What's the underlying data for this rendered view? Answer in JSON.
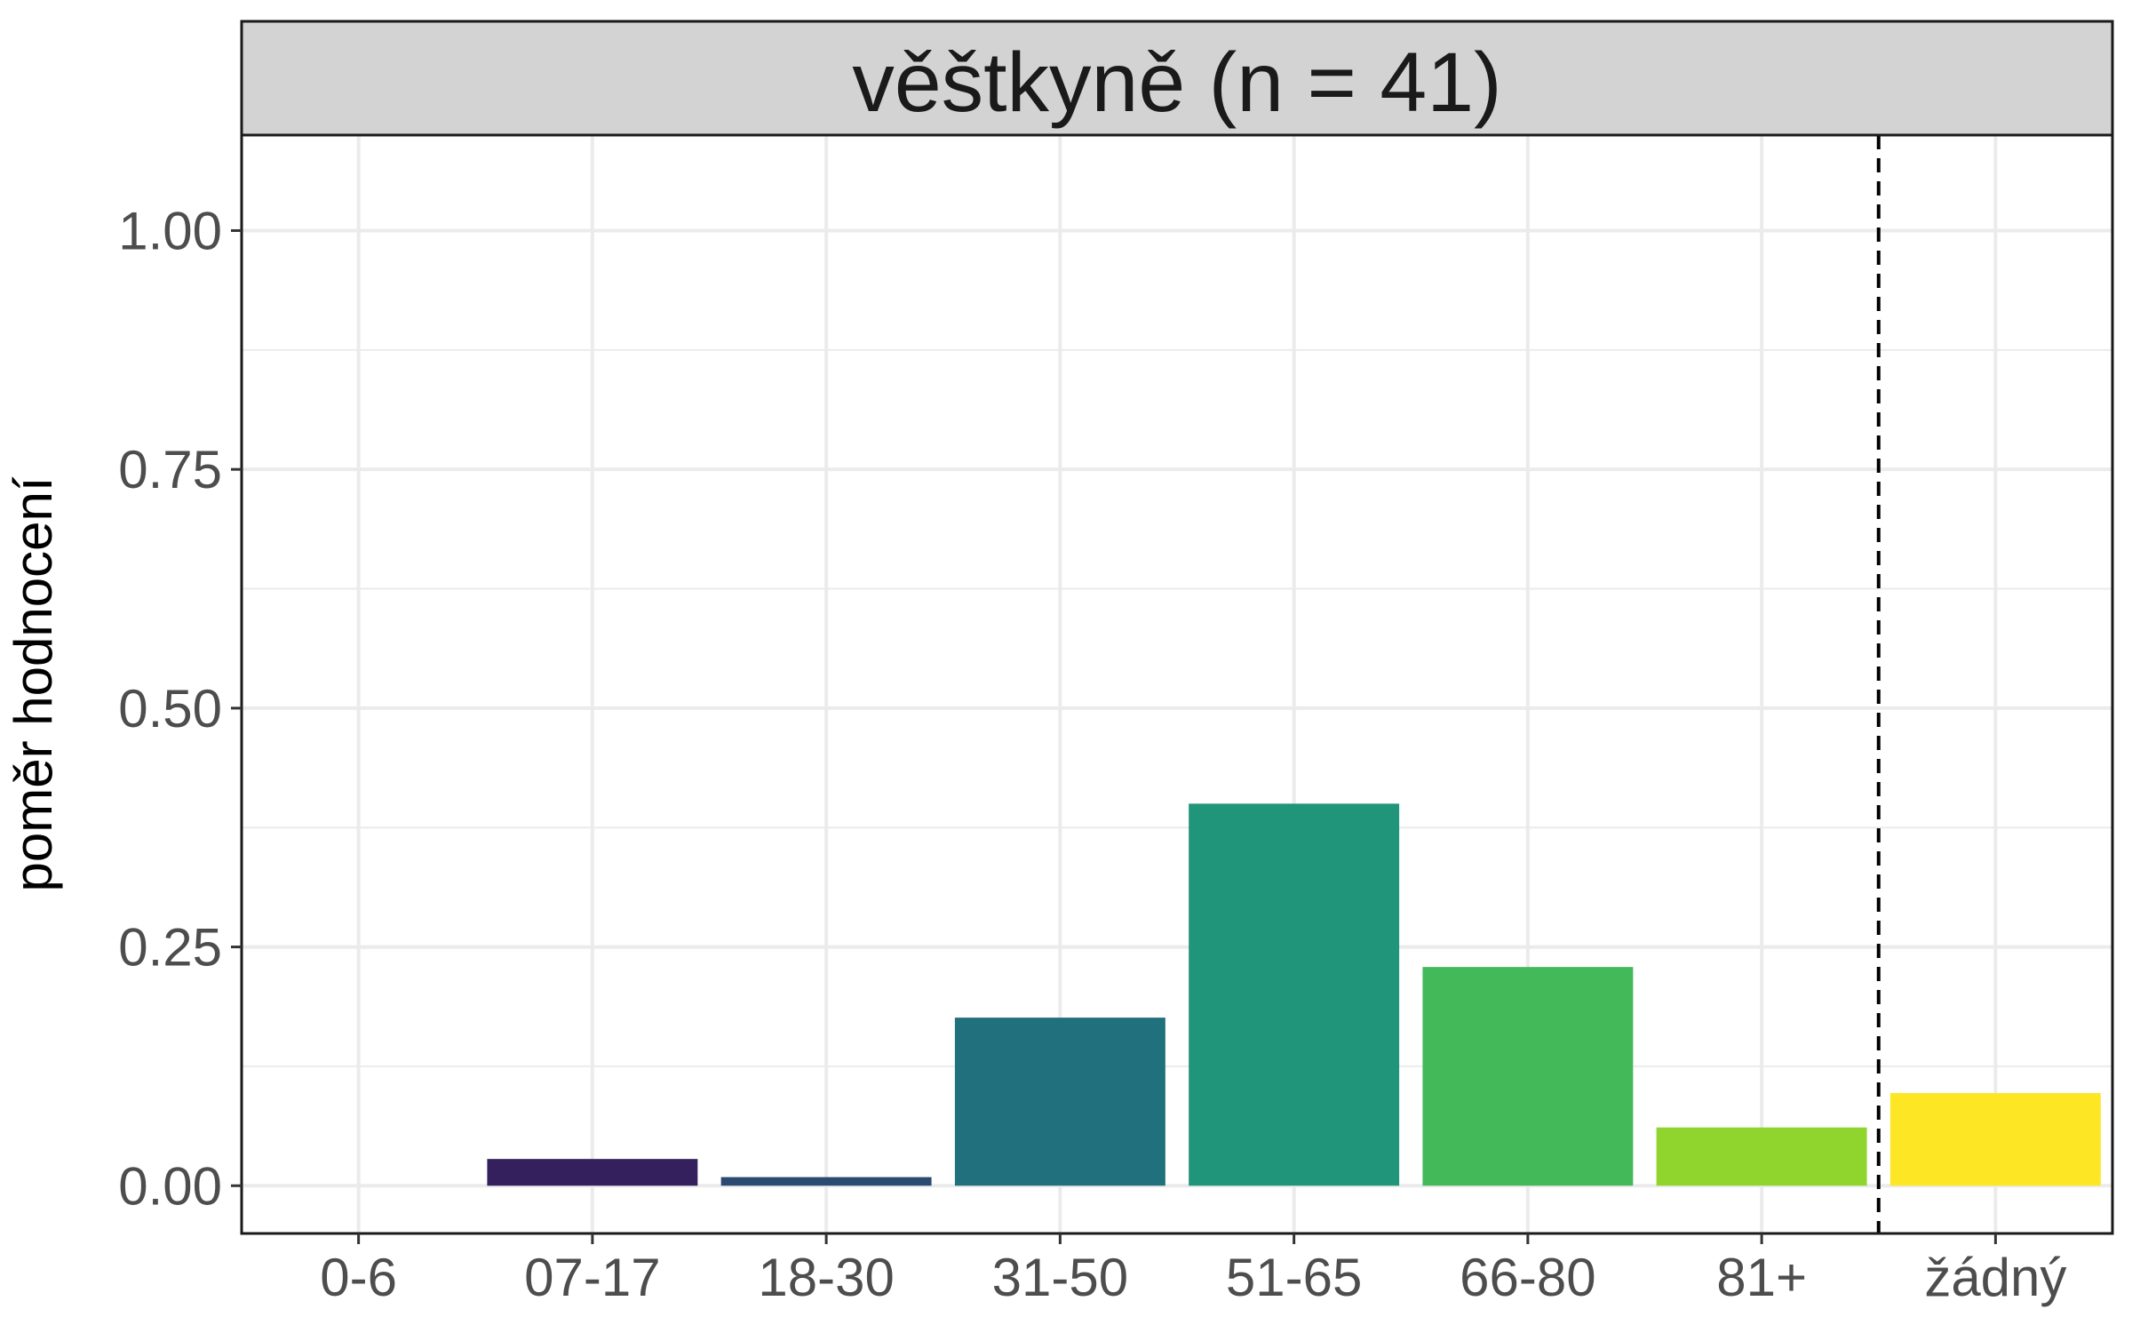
{
  "chart_data": {
    "type": "bar",
    "facet_title": "věštkyně (n = 41)",
    "title": "",
    "xlabel": "",
    "ylabel": "poměr hodnocení",
    "categories": [
      "0-6",
      "07-17",
      "18-30",
      "31-50",
      "51-65",
      "66-80",
      "81+",
      "žádný"
    ],
    "values": [
      0.0,
      0.028,
      0.009,
      0.176,
      0.4,
      0.229,
      0.061,
      0.097
    ],
    "colors": [
      "#440154",
      "#35205e",
      "#2b4a72",
      "#21707e",
      "#20957a",
      "#43b95a",
      "#90d52e",
      "#fde725"
    ],
    "ylim": [
      -0.05,
      1.1
    ],
    "yticks": [
      0.0,
      0.25,
      0.5,
      0.75,
      1.0
    ],
    "ytick_labels": [
      "0.00",
      "0.25",
      "0.50",
      "0.75",
      "1.00"
    ],
    "grid": true,
    "reference_line": {
      "between_categories": [
        "81+",
        "žádný"
      ],
      "style": "dashed",
      "color": "#000000"
    },
    "strip_fill": "#d3d3d3"
  }
}
